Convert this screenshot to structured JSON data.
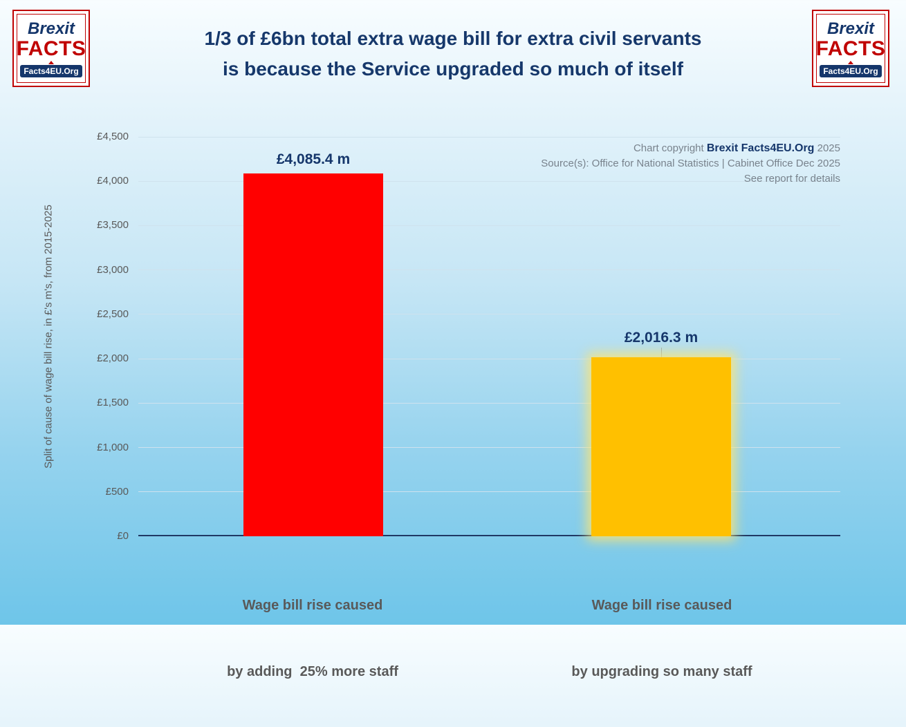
{
  "page": {
    "background_top": "#f8fdff",
    "background_bottom": "#6ec5e9"
  },
  "logo": {
    "word1": "Brexit",
    "word2": "FACTS",
    "banner": "Facts4EU.Org"
  },
  "header": {
    "title_line1": "1/3 of £6bn total extra wage bill for extra civil servants",
    "title_line2": "is because the Service upgraded so much of itself",
    "title_color": "#16386b"
  },
  "annotation": {
    "line1_prefix": "Chart copyright ",
    "line1_brand": "Brexit Facts4EU.Org",
    "line1_suffix": " 2025",
    "line2": "Source(s): Office for National Statistics | Cabinet Office Dec 2025",
    "line3": "See report for details"
  },
  "colors": {
    "bar_red": "#ff0000",
    "bar_yellow": "#ffc000",
    "axis_navy": "#1f3864",
    "text_navy": "#15366b",
    "text_gray": "#595959"
  },
  "chart_data": {
    "type": "bar",
    "title": "1/3 of £6bn total extra wage bill for extra civil servants is because the Service upgraded so much of itself",
    "ylabel": "Split of cause of wage bill rise, in £'s m's, from 2015-2025",
    "xlabel": "",
    "ylim": [
      0,
      4500
    ],
    "ytick_step": 500,
    "yticks": [
      "£0",
      "£500",
      "£1,000",
      "£1,500",
      "£2,000",
      "£2,500",
      "£3,000",
      "£3,500",
      "£4,000",
      "£4,500"
    ],
    "grid": true,
    "legend_position": "none",
    "bars": [
      {
        "category_line1": "Wage bill rise caused",
        "category_line2": "by adding  25% more staff",
        "value": 4085.4,
        "value_label": "£4,085.4 m",
        "color": "#ff0000",
        "glow": false,
        "connector": false
      },
      {
        "category_line1": "Wage bill rise caused",
        "category_line2": "by upgrading so many staff",
        "value": 2016.3,
        "value_label": "£2,016.3 m",
        "color": "#ffc000",
        "glow": true,
        "connector": true
      }
    ]
  }
}
